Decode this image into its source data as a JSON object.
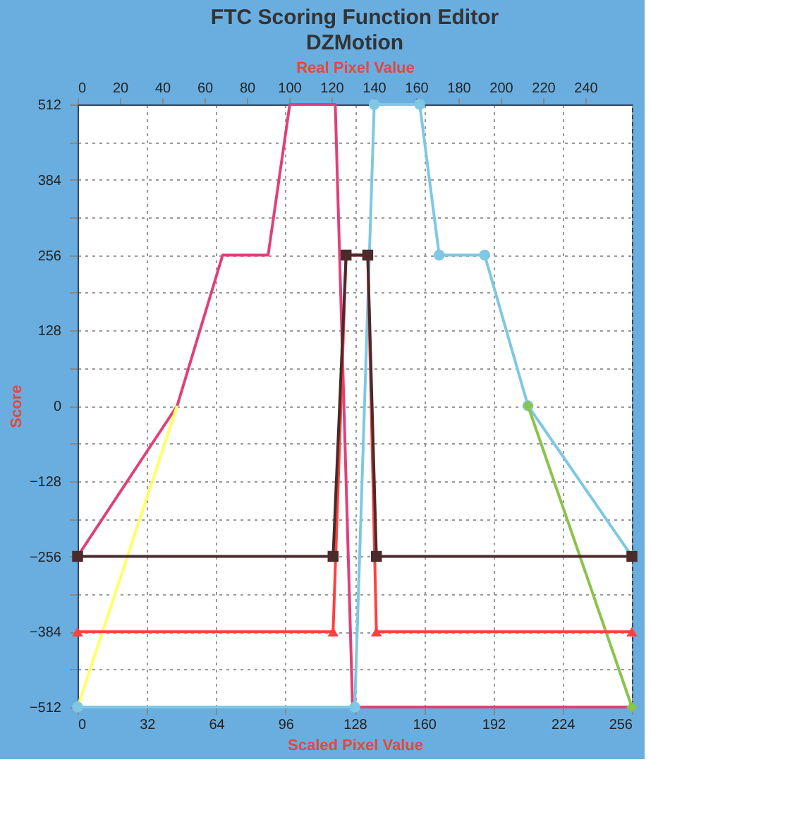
{
  "chart_data": {
    "type": "line",
    "title": "FTC Scoring Function Editor",
    "subtitle": "DZMotion",
    "xlabel": "Scaled Pixel Value",
    "ylabel": "Score",
    "x2label": "Real Pixel Value",
    "xlim": [
      0,
      256
    ],
    "xticks": [
      0,
      32,
      64,
      96,
      128,
      160,
      192,
      224,
      256
    ],
    "x2lim": [
      0,
      262
    ],
    "x2ticks": [
      0,
      20,
      40,
      60,
      80,
      100,
      120,
      140,
      160,
      180,
      200,
      220,
      240
    ],
    "ylim": [
      -512,
      512
    ],
    "yticks": [
      -512,
      {
        "value": -448,
        "label": null
      },
      -384,
      {
        "value": -320,
        "label": null
      },
      -256,
      {
        "value": -192,
        "label": null
      },
      -128,
      {
        "value": -64,
        "label": null
      },
      0,
      {
        "value": 64,
        "label": null
      },
      128,
      {
        "value": 192,
        "label": null
      },
      256,
      {
        "value": 320,
        "label": null
      },
      384,
      {
        "value": 448,
        "label": null
      },
      512
    ],
    "grid": true,
    "series": [
      {
        "color": "#e0407a",
        "marker": "none",
        "x": [
          0,
          46,
          67,
          88,
          98,
          119,
          127,
          256
        ],
        "values": [
          -256,
          0,
          256,
          256,
          512,
          512,
          -512,
          -512
        ]
      },
      {
        "color": "#ffff66",
        "marker": "none",
        "x": [
          0,
          46
        ],
        "values": [
          -512,
          0
        ]
      },
      {
        "color": "#7ec8e3",
        "marker": "circle",
        "x": [
          0,
          128,
          137,
          158,
          167,
          188,
          208,
          256
        ],
        "values": [
          -512,
          -512,
          512,
          512,
          256,
          256,
          0,
          -256
        ]
      },
      {
        "color": "#8bc34a",
        "marker": "diamond",
        "x": [
          208,
          256
        ],
        "values": [
          0,
          -512
        ]
      },
      {
        "color": "#ff4040",
        "marker": "triangle",
        "x": [
          0,
          118,
          124,
          134,
          138,
          256
        ],
        "values": [
          -384,
          -384,
          256,
          256,
          -384,
          -384
        ]
      },
      {
        "color": "#4a2a2a",
        "marker": "square",
        "x": [
          0,
          118,
          124,
          134,
          138,
          256
        ],
        "values": [
          -256,
          -256,
          256,
          256,
          -256,
          -256
        ]
      }
    ]
  }
}
